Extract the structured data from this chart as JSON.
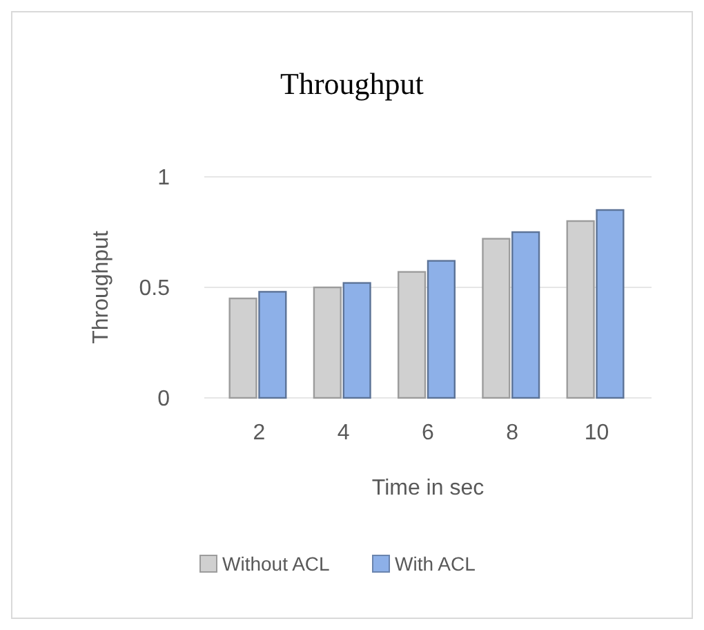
{
  "chart_data": {
    "type": "bar",
    "title": "Throughput",
    "xlabel": "Time in sec",
    "ylabel": "Throughput",
    "categories": [
      "2",
      "4",
      "6",
      "8",
      "10"
    ],
    "series": [
      {
        "name": "Without ACL",
        "color": "#d0d0d0",
        "values": [
          0.45,
          0.5,
          0.57,
          0.72,
          0.8
        ]
      },
      {
        "name": "With ACL",
        "color": "#8db0e8",
        "values": [
          0.48,
          0.52,
          0.62,
          0.75,
          0.85
        ]
      }
    ],
    "ylim": [
      0,
      1
    ],
    "yticks": [
      0,
      0.5,
      1
    ],
    "grid": "y",
    "legend": "bottom"
  }
}
